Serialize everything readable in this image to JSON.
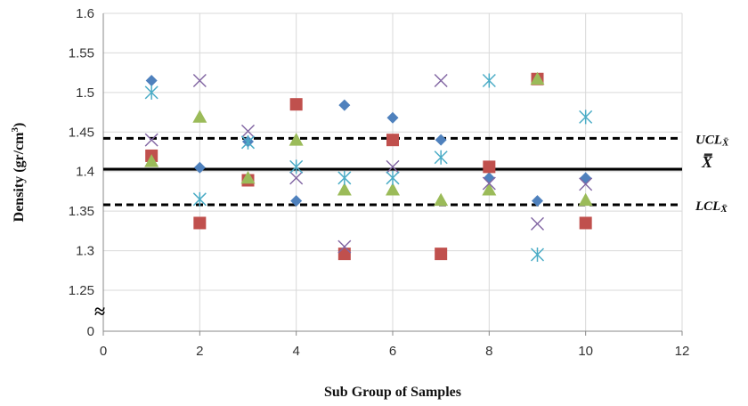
{
  "chart_data": {
    "type": "scatter",
    "xlabel": "Sub Group of  Samples",
    "ylabel": "Density (gr/cm",
    "ylabel_sup": "3",
    "ylabel_end": ")",
    "xlim": [
      0,
      12
    ],
    "xticks": [
      0,
      2,
      4,
      6,
      8,
      10,
      12
    ],
    "yticks": [
      1.6,
      1.55,
      1.5,
      1.45,
      1.4,
      1.35,
      1.3,
      1.25
    ],
    "y_zero_label": "0",
    "axis_break_symbol": "≈",
    "grid": true,
    "grid_color": "#d9d9d9",
    "series": [
      {
        "marker": "diamond",
        "color": "#4f81bd",
        "x": [
          1,
          2,
          3,
          4,
          5,
          6,
          7,
          8,
          9,
          10
        ],
        "y": [
          1.515,
          1.405,
          1.438,
          1.363,
          1.484,
          1.468,
          1.44,
          1.392,
          1.363,
          1.392
        ]
      },
      {
        "marker": "square",
        "color": "#c0504d",
        "x": [
          1,
          2,
          3,
          4,
          5,
          6,
          7,
          8,
          9,
          10
        ],
        "y": [
          1.42,
          1.335,
          1.389,
          1.485,
          1.296,
          1.44,
          1.296,
          1.406,
          1.517,
          1.335
        ]
      },
      {
        "marker": "triangle",
        "color": "#9bbb59",
        "x": [
          1,
          2,
          3,
          4,
          5,
          6,
          7,
          8,
          9,
          10
        ],
        "y": [
          1.413,
          1.469,
          1.392,
          1.44,
          1.377,
          1.377,
          1.364,
          1.377,
          1.517,
          1.364
        ]
      },
      {
        "marker": "x",
        "color": "#8064a2",
        "x": [
          1,
          2,
          3,
          4,
          5,
          6,
          7,
          8,
          9,
          10
        ],
        "y": [
          1.44,
          1.515,
          1.451,
          1.392,
          1.305,
          1.406,
          1.515,
          1.385,
          1.334,
          1.384
        ]
      },
      {
        "marker": "asterisk",
        "color": "#4bacc6",
        "x": [
          1,
          2,
          3,
          4,
          5,
          6,
          7,
          8,
          9,
          10
        ],
        "y": [
          1.5,
          1.365,
          1.437,
          1.406,
          1.392,
          1.392,
          1.418,
          1.515,
          1.295,
          1.469
        ]
      }
    ],
    "control_lines": [
      {
        "label": "UCL",
        "label_sub": "X̄",
        "value": 1.442,
        "style": "dashed",
        "color": "#000000"
      },
      {
        "label": "X̿",
        "label_sub": "",
        "value": 1.403,
        "style": "solid",
        "color": "#000000"
      },
      {
        "label": "LCL",
        "label_sub": "X̄",
        "value": 1.358,
        "style": "dashed",
        "color": "#000000"
      }
    ]
  }
}
